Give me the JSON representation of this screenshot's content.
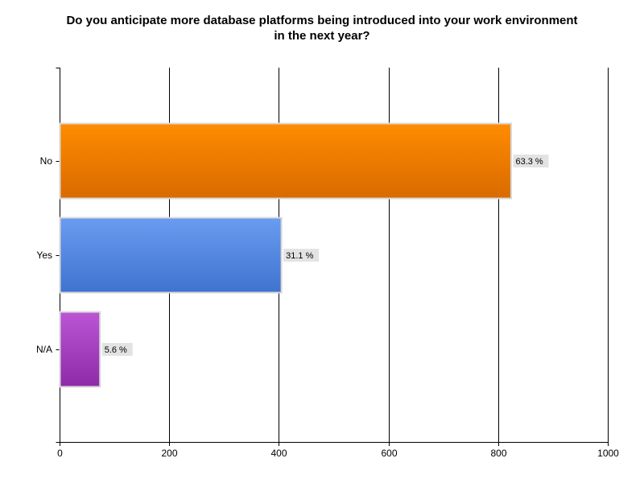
{
  "chart_data": {
    "type": "bar",
    "orientation": "horizontal",
    "title_lines": [
      "Do you anticipate more database platforms being introduced into your work environment",
      "in the next year?"
    ],
    "categories": [
      "No",
      "Yes",
      "N/A"
    ],
    "values": [
      823,
      404,
      73
    ],
    "data_labels": [
      "63.3 %",
      "31.1 %",
      "5.6 %"
    ],
    "xlim": [
      0,
      1000
    ],
    "xticks": [
      0,
      200,
      400,
      600,
      800,
      1000
    ],
    "grid": true,
    "legend": "none",
    "colors": [
      {
        "top": "#ff8c00",
        "bottom": "#d96a00"
      },
      {
        "top": "#6a9cf0",
        "bottom": "#3f73cf"
      },
      {
        "top": "#bb55d6",
        "bottom": "#8e2aa6"
      }
    ]
  }
}
